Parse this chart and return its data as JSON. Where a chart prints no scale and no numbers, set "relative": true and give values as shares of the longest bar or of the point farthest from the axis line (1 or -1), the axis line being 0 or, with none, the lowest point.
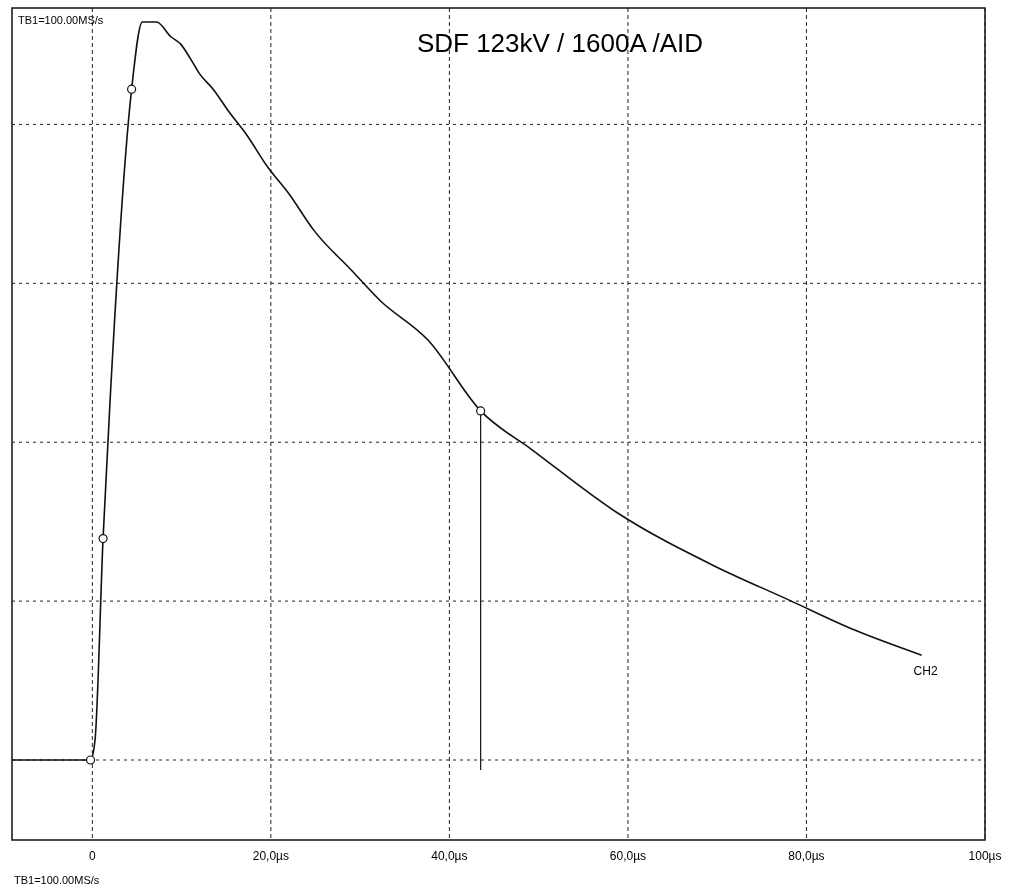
{
  "chart_data": {
    "type": "line",
    "title": "SDF 123kV / 1600A /AID",
    "relative": true,
    "xlim": [
      -9,
      100
    ],
    "xticks": [
      0,
      {
        "value": 20,
        "label": "20,0µs"
      },
      {
        "value": 40,
        "label": "40,0µs"
      },
      {
        "value": 60,
        "label": "60,0µs"
      },
      {
        "value": 80,
        "label": "80,0µs"
      },
      {
        "value": 100,
        "label": "100µs"
      }
    ],
    "grid": true,
    "line_style": "solid",
    "series": [
      {
        "name": "CH2",
        "color": "#111111",
        "x": [
          -9,
          -0.2,
          0.3,
          1.2,
          2.0,
          4.4,
          5.6,
          7.2,
          8.8,
          9.9,
          11,
          12,
          13.6,
          15.2,
          17.3,
          19.5,
          22.1,
          24.8,
          29,
          32.2,
          37.6,
          43.5,
          49.3,
          58.8,
          69.5,
          78,
          85.4,
          92.9
        ],
        "values": [
          0,
          0,
          0.027,
          0.3,
          0.49,
          0.909,
          1.0,
          1.0,
          0.98,
          0.97,
          0.95,
          0.93,
          0.908,
          0.88,
          0.847,
          0.806,
          0.766,
          0.718,
          0.664,
          0.623,
          0.569,
          0.473,
          0.42,
          0.335,
          0.264,
          0.217,
          0.176,
          0.142
        ]
      },
      {
        "color": "#111111",
        "type": "scatter",
        "marker": "circle",
        "x": [
          -0.2,
          1.2,
          4.4,
          43.5
        ],
        "values": [
          0,
          0.3,
          0.909,
          0.473
        ]
      }
    ],
    "ref_lines": [
      {
        "axis": "x",
        "value": 43.5,
        "color": "#111111"
      }
    ],
    "annotations": [
      "TB1=100.00MS/s",
      "TB1=100.00MS/s"
    ]
  }
}
